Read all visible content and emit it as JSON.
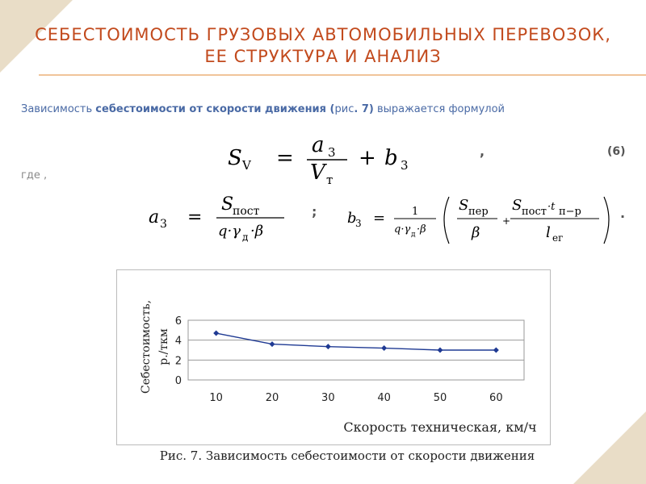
{
  "slide": {
    "title": "Себестоимость грузовых автомобильных перевозок, ее структура и анализ",
    "intro_parts": [
      "Зависимость ",
      "себестоимости от скорости движения",
      " (",
      "рис",
      ". 7)",
      " выражается формулой"
    ],
    "where_label": "где ,",
    "eq_comma": ",",
    "eq_number": "(6)",
    "semicolon": ";",
    "period": ".",
    "caption": "Рис. 7. Зависимость себестоимости от скорости движения",
    "colors": {
      "title": "#c24a1d",
      "rule": "#f0c49a",
      "corner": "#e9ddc7",
      "series": "#1f3a93"
    }
  },
  "formula6": {
    "lhs": "S",
    "lhs_sub": "V",
    "eq": "=",
    "num": "a",
    "num_sub": "3",
    "den": "V",
    "den_sub": "т",
    "plus": "+",
    "b": "b",
    "b_sub": "3"
  },
  "formula_a3": {
    "lhs": "a",
    "lhs_sub": "3",
    "eq": "=",
    "num": "S",
    "num_sub": "пост",
    "den": "q·γ",
    "den_sub": "д",
    "den_tail": "·β"
  },
  "formula_b3": {
    "lhs": "b",
    "lhs_sub": "3",
    "eq": "=",
    "coef_num": "1",
    "coef_den": "q·γ",
    "coef_den_sub": "д",
    "coef_den_tail": "·β",
    "t1_num": "S",
    "t1_num_sub": "пер",
    "t1_den": "β",
    "plus": "+",
    "t2_num": "S",
    "t2_num_sub": "пост",
    "t2_num_mid": "·t",
    "t2_num_sub2": "п−р",
    "t2_den": "l",
    "t2_den_sub": "ег"
  },
  "chart_data": {
    "type": "line",
    "title": "",
    "xlabel": "Скорость техническая, км/ч",
    "ylabel_line1": "Себестоимость,",
    "ylabel_line2": "р./ткм",
    "x": [
      10,
      20,
      30,
      40,
      50,
      60
    ],
    "y": [
      4.7,
      3.6,
      3.35,
      3.2,
      3.0,
      3.0
    ],
    "xticks": [
      "10",
      "20",
      "30",
      "40",
      "50",
      "60"
    ],
    "yticks": [
      "0",
      "2",
      "4",
      "6"
    ],
    "ylim": [
      0,
      6
    ],
    "grid": true,
    "legend": "none"
  }
}
